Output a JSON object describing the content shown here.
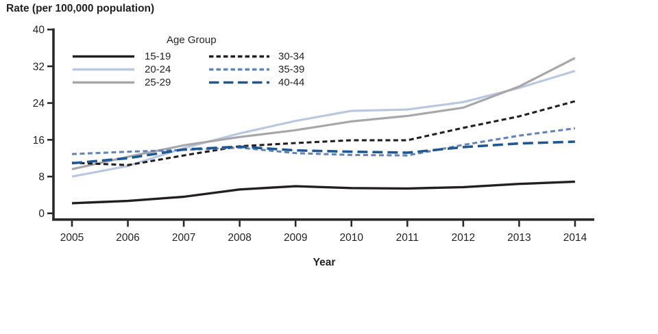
{
  "figure": {
    "y_axis_title": "Rate (per 100,000 population)",
    "x_axis_title": "Year"
  },
  "legend": {
    "title": "Age Group",
    "column_1": [
      "15-19",
      "20-24",
      "25-29"
    ],
    "column_2": [
      "30-34",
      "35-39",
      "40-44"
    ]
  },
  "colors": {
    "axis": "#2b2829",
    "text": "#231f20",
    "black_line": "#231f20",
    "light_blue_line": "#b9c7e2",
    "gray_line": "#a7a7aa",
    "medium_blue_line": "#6383bd",
    "dark_blue_line": "#1c5796"
  },
  "chart_data": {
    "type": "line",
    "title": "Rate (per 100,000 population)",
    "xlabel": "Year",
    "ylabel": "Rate (per 100,000 population)",
    "legend_title": "Age Group",
    "legend_position": "top-left-inside",
    "grid": false,
    "x": [
      2005,
      2006,
      2007,
      2008,
      2009,
      2010,
      2011,
      2012,
      2013,
      2014
    ],
    "xticks": [
      "2005",
      "2006",
      "2007",
      "2008",
      "2009",
      "2010",
      "2011",
      "2012",
      "2013",
      "2014"
    ],
    "yticks": [
      0,
      8,
      16,
      24,
      32,
      40
    ],
    "ylim": [
      0,
      40
    ],
    "series": [
      {
        "name": "15-19",
        "color": "#231f20",
        "style": "solid",
        "dash": "",
        "width": 3.4,
        "values": [
          2.2,
          2.7,
          3.6,
          5.2,
          5.9,
          5.5,
          5.4,
          5.7,
          6.4,
          6.9
        ]
      },
      {
        "name": "20-24",
        "color": "#b9c7e2",
        "style": "solid",
        "dash": "",
        "width": 3.2,
        "values": [
          8.0,
          10.3,
          14.2,
          17.4,
          20.1,
          22.3,
          22.6,
          24.2,
          27.3,
          31.0
        ]
      },
      {
        "name": "25-29",
        "color": "#a7a7aa",
        "style": "solid",
        "dash": "",
        "width": 3.2,
        "values": [
          9.6,
          12.3,
          14.8,
          16.6,
          18.1,
          20.0,
          21.2,
          23.0,
          27.6,
          33.8
        ]
      },
      {
        "name": "30-34",
        "color": "#231f20",
        "style": "dashed",
        "dash": "7,4.5",
        "width": 3.1,
        "values": [
          11.0,
          10.5,
          12.6,
          14.6,
          15.3,
          15.9,
          15.9,
          18.6,
          21.1,
          24.4
        ]
      },
      {
        "name": "35-39",
        "color": "#6383bd",
        "style": "dashed",
        "dash": "7,4.5",
        "width": 3.1,
        "values": [
          12.9,
          13.4,
          13.8,
          14.3,
          13.1,
          12.7,
          12.6,
          14.9,
          16.9,
          18.5
        ]
      },
      {
        "name": "40-44",
        "color": "#1c5796",
        "style": "long-dash",
        "dash": "15,7",
        "width": 3.6,
        "values": [
          10.9,
          12.0,
          13.9,
          14.5,
          13.7,
          13.4,
          13.2,
          14.4,
          15.2,
          15.6
        ]
      }
    ]
  }
}
